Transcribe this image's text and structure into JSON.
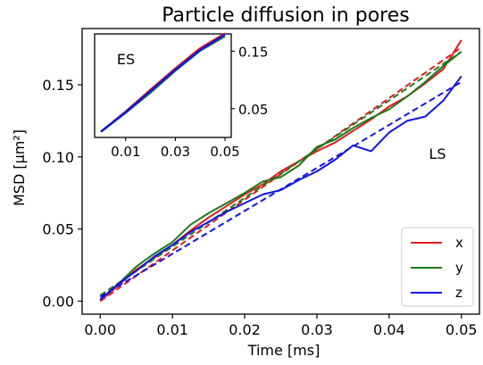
{
  "chart_data": [
    {
      "id": "main",
      "type": "line",
      "title": "Particle diffusion in pores",
      "xlabel": "Time [ms]",
      "ylabel": "MSD [μm²]",
      "xlim": [
        -0.0025,
        0.0525
      ],
      "ylim": [
        -0.009,
        0.189
      ],
      "xticks": [
        0.0,
        0.01,
        0.02,
        0.03,
        0.04,
        0.05
      ],
      "xtick_labels": [
        "0.00",
        "0.01",
        "0.02",
        "0.03",
        "0.04",
        "0.05"
      ],
      "yticks": [
        0.0,
        0.05,
        0.1,
        0.15
      ],
      "ytick_labels": [
        "0.00",
        "0.05",
        "0.10",
        "0.15"
      ],
      "grid": false,
      "legend_position": "bottom-right",
      "annotation": "LS",
      "series": [
        {
          "name": "x",
          "color": "#e8191d",
          "style": "solid",
          "x": [
            0,
            0.0025,
            0.005,
            0.0075,
            0.01,
            0.0125,
            0.015,
            0.0175,
            0.02,
            0.0225,
            0.025,
            0.0275,
            0.03,
            0.0325,
            0.035,
            0.0375,
            0.04,
            0.0425,
            0.045,
            0.0475,
            0.05
          ],
          "y": [
            0.0,
            0.011,
            0.022,
            0.03,
            0.039,
            0.049,
            0.058,
            0.066,
            0.074,
            0.081,
            0.09,
            0.097,
            0.104,
            0.11,
            0.118,
            0.126,
            0.135,
            0.142,
            0.151,
            0.161,
            0.181
          ]
        },
        {
          "name": "",
          "color": "#e8191d",
          "style": "dashed",
          "x": [
            0,
            0.05
          ],
          "y": [
            0.0,
            0.176
          ]
        },
        {
          "name": "y",
          "color": "#1b7c1b",
          "style": "solid",
          "x": [
            0,
            0.0025,
            0.005,
            0.0075,
            0.01,
            0.0125,
            0.015,
            0.0175,
            0.02,
            0.0225,
            0.025,
            0.0275,
            0.03,
            0.0325,
            0.035,
            0.0375,
            0.04,
            0.0425,
            0.045,
            0.0475,
            0.05
          ],
          "y": [
            0.001,
            0.012,
            0.024,
            0.033,
            0.041,
            0.053,
            0.061,
            0.068,
            0.075,
            0.083,
            0.086,
            0.094,
            0.107,
            0.112,
            0.12,
            0.127,
            0.133,
            0.142,
            0.152,
            0.163,
            0.173
          ]
        },
        {
          "name": "",
          "color": "#1b7c1b",
          "style": "dashed",
          "x": [
            0,
            0.05
          ],
          "y": [
            0.004,
            0.173
          ]
        },
        {
          "name": "z",
          "color": "#1414e6",
          "style": "solid",
          "x": [
            0,
            0.0025,
            0.005,
            0.0075,
            0.01,
            0.0125,
            0.015,
            0.0175,
            0.02,
            0.0225,
            0.025,
            0.0275,
            0.03,
            0.0325,
            0.035,
            0.0375,
            0.04,
            0.0425,
            0.045,
            0.0475,
            0.05
          ],
          "y": [
            0.001,
            0.012,
            0.021,
            0.031,
            0.039,
            0.048,
            0.055,
            0.062,
            0.068,
            0.074,
            0.077,
            0.084,
            0.09,
            0.098,
            0.108,
            0.104,
            0.117,
            0.125,
            0.128,
            0.139,
            0.156
          ]
        },
        {
          "name": "",
          "color": "#1414e6",
          "style": "dashed",
          "x": [
            0,
            0.05
          ],
          "y": [
            0.003,
            0.152
          ]
        }
      ]
    },
    {
      "id": "inset",
      "type": "line",
      "annotation": "ES",
      "xlim": [
        -0.0025,
        0.0525
      ],
      "ylim": [
        0.0,
        0.18
      ],
      "xticks": [
        0.01,
        0.03,
        0.05
      ],
      "xtick_labels": [
        "0.01",
        "0.03",
        "0.05"
      ],
      "yticks": [
        0.05,
        0.15
      ],
      "ytick_labels": [
        "0.05",
        "0.15"
      ],
      "series": [
        {
          "name": "x",
          "color": "#e8191d",
          "x": [
            0,
            0.01,
            0.02,
            0.03,
            0.04,
            0.05
          ],
          "y": [
            0.01,
            0.045,
            0.083,
            0.12,
            0.155,
            0.181
          ]
        },
        {
          "name": "y",
          "color": "#1b7c1b",
          "x": [
            0,
            0.01,
            0.02,
            0.03,
            0.04,
            0.05
          ],
          "y": [
            0.01,
            0.043,
            0.078,
            0.116,
            0.151,
            0.176
          ]
        },
        {
          "name": "z",
          "color": "#1414e6",
          "x": [
            0,
            0.01,
            0.02,
            0.03,
            0.04,
            0.05
          ],
          "y": [
            0.01,
            0.044,
            0.081,
            0.118,
            0.152,
            0.179
          ]
        }
      ]
    }
  ]
}
